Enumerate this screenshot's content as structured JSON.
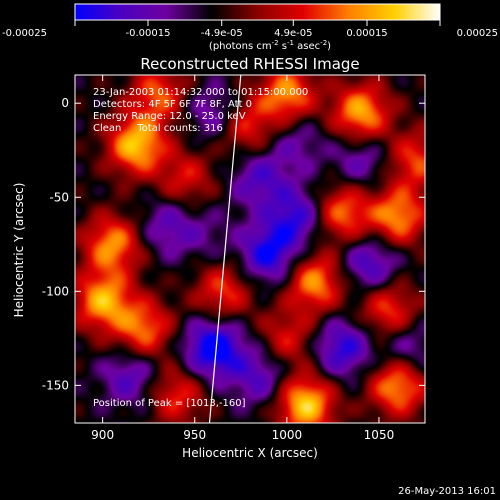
{
  "colorbar": {
    "ticks": [
      "-0.00025",
      "-0.00015",
      "-4.9e-05",
      "4.9e-05",
      "0.00015",
      "0.00025"
    ],
    "tick_values": [
      -0.00025,
      -0.00015,
      -4.9e-05,
      4.9e-05,
      0.00015,
      0.00025
    ],
    "range": [
      -0.00025,
      0.00025
    ],
    "units_main": "(photons cm",
    "units_sup1": "-2",
    "units_mid": " s",
    "units_sup2": "-1",
    "units_end": " asec",
    "units_sup3": "-2",
    "units_close": ")",
    "stops": [
      "#0000ff",
      "#4a00c0",
      "#6e00a0",
      "#000000",
      "#8a0000",
      "#e00000",
      "#ff7f00",
      "#ffd000",
      "#ffffff"
    ]
  },
  "chart_data": {
    "type": "heatmap",
    "title": "Reconstructed RHESSI Image",
    "xlabel": "Heliocentric X (arcsec)",
    "ylabel": "Heliocentric Y (arcsec)",
    "xlim": [
      885,
      1075
    ],
    "ylim": [
      -170,
      15
    ],
    "xticks": [
      900,
      950,
      1000,
      1050
    ],
    "yticks": [
      0,
      -50,
      -100,
      -150
    ],
    "xtick_labels": [
      "900",
      "950",
      "1000",
      "1050"
    ],
    "ytick_labels": [
      "0",
      "-50",
      "-100",
      "-150"
    ],
    "grid": false,
    "annotations": [
      "23-Jan-2003 01:14:32.000 to 01:15:00.000",
      "Detectors: 4F 5F 6F 7F 8F, Att 0",
      "Energy Range: 12.0 - 25.0 keV",
      "Clean     Total counts: 316"
    ],
    "peak_label": "Position of Peak = [1013,-160]",
    "limb_points": [
      [
        975,
        15
      ],
      [
        958,
        -170
      ]
    ],
    "hot_regions": [
      {
        "x": 918,
        "y": -22,
        "v": 0.00024
      },
      {
        "x": 905,
        "y": -75,
        "v": 0.0002
      },
      {
        "x": 922,
        "y": -120,
        "v": 0.00018
      },
      {
        "x": 900,
        "y": -105,
        "v": 0.00022
      },
      {
        "x": 945,
        "y": -40,
        "v": 0.00012
      },
      {
        "x": 930,
        "y": 5,
        "v": 0.00016
      },
      {
        "x": 978,
        "y": -12,
        "v": 0.00014
      },
      {
        "x": 1000,
        "y": 5,
        "v": 0.0002
      },
      {
        "x": 1040,
        "y": -5,
        "v": 0.00022
      },
      {
        "x": 1060,
        "y": -60,
        "v": 0.0002
      },
      {
        "x": 1030,
        "y": -58,
        "v": 0.00018
      },
      {
        "x": 1015,
        "y": -95,
        "v": 0.0002
      },
      {
        "x": 1055,
        "y": -110,
        "v": 0.00016
      },
      {
        "x": 965,
        "y": -100,
        "v": 0.00015
      },
      {
        "x": 1010,
        "y": -160,
        "v": 0.00025
      },
      {
        "x": 1060,
        "y": -150,
        "v": 0.00021
      },
      {
        "x": 940,
        "y": -155,
        "v": 0.00014
      },
      {
        "x": 1000,
        "y": -125,
        "v": 0.00012
      },
      {
        "x": 1070,
        "y": -30,
        "v": 0.00015
      },
      {
        "x": 955,
        "y": -70,
        "v": -5e-05
      },
      {
        "x": 985,
        "y": -40,
        "v": -0.00012
      },
      {
        "x": 935,
        "y": -65,
        "v": -0.0001
      },
      {
        "x": 1005,
        "y": -60,
        "v": -0.00015
      },
      {
        "x": 990,
        "y": -80,
        "v": -0.00018
      },
      {
        "x": 1045,
        "y": -85,
        "v": -0.00014
      },
      {
        "x": 960,
        "y": -130,
        "v": -0.00022
      },
      {
        "x": 985,
        "y": -145,
        "v": -0.00012
      },
      {
        "x": 1030,
        "y": -130,
        "v": -0.00016
      },
      {
        "x": 1040,
        "y": -30,
        "v": -0.0001
      },
      {
        "x": 960,
        "y": -5,
        "v": -0.0001
      },
      {
        "x": 1005,
        "y": -20,
        "v": -8e-05
      },
      {
        "x": 915,
        "y": -145,
        "v": -0.00012
      },
      {
        "x": 1065,
        "y": -130,
        "v": -0.0001
      }
    ]
  },
  "footer": {
    "timestamp": "26-May-2013 16:01"
  }
}
